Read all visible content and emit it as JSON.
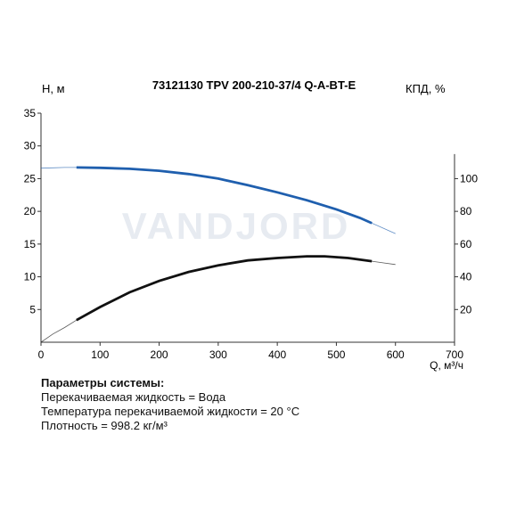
{
  "chart_data": {
    "type": "line",
    "title": "73121130 TPV 200-210-37/4 Q-A-BT-E",
    "xlabel": "Q, м³/ч",
    "ylabel_left": "Н, м",
    "ylabel_right": "КПД, %",
    "xlim": [
      0,
      700
    ],
    "ylim_left": [
      0,
      35
    ],
    "ylim_right": [
      0,
      140
    ],
    "x_ticks": [
      "0",
      "100",
      "200",
      "300",
      "400",
      "500",
      "600",
      "700"
    ],
    "y_left_ticks": [
      "5",
      "10",
      "15",
      "20",
      "25",
      "30",
      "35"
    ],
    "y_right_ticks": [
      "20",
      "40",
      "60",
      "80",
      "100"
    ],
    "watermark": "VANDJORD",
    "series": [
      {
        "axis": "left",
        "color": "#1f5fae",
        "x": [
          0,
          20,
          40,
          60,
          100,
          150,
          200,
          250,
          300,
          350,
          400,
          450,
          500,
          540,
          560,
          580,
          600
        ],
        "y": [
          26.6,
          26.65,
          26.7,
          26.7,
          26.65,
          26.5,
          26.2,
          25.7,
          25.0,
          24.0,
          22.9,
          21.7,
          20.3,
          19.0,
          18.2,
          17.4,
          16.6
        ],
        "op_range": [
          60,
          560
        ]
      },
      {
        "axis": "right",
        "color": "#111111",
        "x": [
          0,
          20,
          40,
          60,
          100,
          150,
          200,
          250,
          300,
          350,
          400,
          450,
          480,
          520,
          560,
          580,
          600
        ],
        "y": [
          0,
          5,
          9,
          13.5,
          21.5,
          30.5,
          37.5,
          43,
          47,
          50,
          51.5,
          52.5,
          52.5,
          51.5,
          49.5,
          48.5,
          47.5
        ],
        "op_range": [
          60,
          560
        ]
      }
    ]
  },
  "params": {
    "heading": "Параметры системы:",
    "lines": [
      "Перекачиваемая жидкость = Вода",
      "Температура перекачиваемой жидкости = 20 °C",
      "Плотность = 998.2 кг/м³"
    ]
  }
}
